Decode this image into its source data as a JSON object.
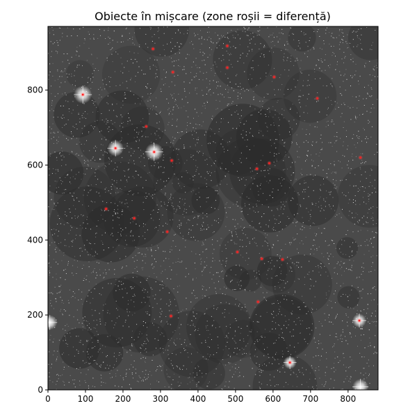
{
  "figure": {
    "title": "Obiecte în mișcare (zone roșii = diferență)",
    "colors": {
      "sky_dark": "#2c2c2c",
      "sky_mid": "#4a4a4a",
      "speckle": "#e8e8e8",
      "diff_marker": "#ff2020",
      "axis": "#000000",
      "background": "#ffffff"
    }
  },
  "chart_data": {
    "type": "image",
    "title": "Obiecte în mișcare (zone roșii = diferență)",
    "xlabel": "",
    "ylabel": "",
    "xlim": [
      0,
      880
    ],
    "ylim": [
      0,
      970
    ],
    "x_ticks": [
      0,
      100,
      200,
      300,
      400,
      500,
      600,
      700,
      800
    ],
    "y_ticks": [
      0,
      200,
      400,
      600,
      800
    ],
    "grid": false,
    "bright_stars": [
      {
        "x": 93,
        "y": 788,
        "size": 3
      },
      {
        "x": 180,
        "y": 645,
        "size": 2.6
      },
      {
        "x": 283,
        "y": 635,
        "size": 3
      },
      {
        "x": 830,
        "y": 185,
        "size": 2
      },
      {
        "x": 645,
        "y": 73,
        "size": 1.8
      },
      {
        "x": 833,
        "y": 8,
        "size": 2.5
      },
      {
        "x": 5,
        "y": 180,
        "size": 2.2
      }
    ],
    "diff_regions": [
      {
        "x": 93,
        "y": 788
      },
      {
        "x": 180,
        "y": 645
      },
      {
        "x": 283,
        "y": 635
      },
      {
        "x": 280,
        "y": 910
      },
      {
        "x": 478,
        "y": 918
      },
      {
        "x": 478,
        "y": 860
      },
      {
        "x": 333,
        "y": 848
      },
      {
        "x": 603,
        "y": 835
      },
      {
        "x": 718,
        "y": 778
      },
      {
        "x": 262,
        "y": 703
      },
      {
        "x": 330,
        "y": 612
      },
      {
        "x": 557,
        "y": 590
      },
      {
        "x": 590,
        "y": 605
      },
      {
        "x": 833,
        "y": 620
      },
      {
        "x": 155,
        "y": 483
      },
      {
        "x": 230,
        "y": 458
      },
      {
        "x": 318,
        "y": 422
      },
      {
        "x": 505,
        "y": 368
      },
      {
        "x": 570,
        "y": 350
      },
      {
        "x": 625,
        "y": 348
      },
      {
        "x": 560,
        "y": 235
      },
      {
        "x": 328,
        "y": 197
      },
      {
        "x": 830,
        "y": 185
      },
      {
        "x": 645,
        "y": 73
      }
    ]
  }
}
